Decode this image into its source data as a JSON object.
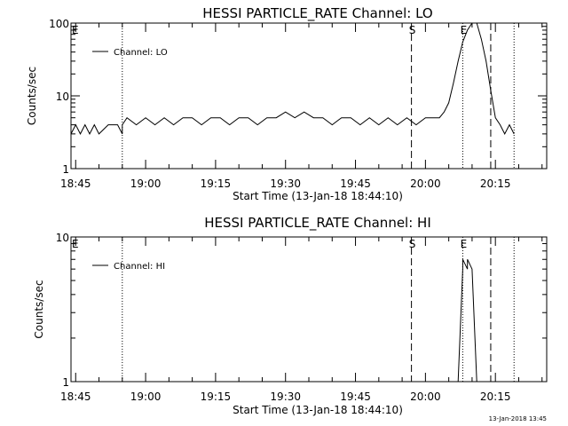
{
  "footer_date": "13-Jan-2018 13:45",
  "chart_data": [
    {
      "type": "line",
      "title": "HESSI PARTICLE_RATE Channel: LO",
      "xlabel": "Start Time (13-Jan-18 18:44:10)",
      "ylabel": "Counts/sec",
      "yscale": "log",
      "ylim": [
        1,
        100
      ],
      "yticks": [
        1,
        10,
        100
      ],
      "ytick_labels": [
        "1",
        "10",
        "100"
      ],
      "xlim": [
        "18:44",
        "20:26"
      ],
      "xticks": [
        "18:45",
        "19:00",
        "19:15",
        "19:30",
        "19:45",
        "20:00",
        "20:15"
      ],
      "legend": "Channel: LO",
      "legend_position": "top-left",
      "markers": [
        {
          "time": "18:44",
          "label": "E",
          "style": "none"
        },
        {
          "time": "18:55",
          "label": "",
          "style": "dotted"
        },
        {
          "time": "19:57",
          "label": "S",
          "style": "dashed"
        },
        {
          "time": "20:08",
          "label": "E",
          "style": "dotted"
        },
        {
          "time": "20:14",
          "label": "",
          "style": "dashed"
        },
        {
          "time": "20:19",
          "label": "",
          "style": "dotted"
        }
      ],
      "series": [
        {
          "x": [
            "18:44",
            "18:45",
            "18:46",
            "18:47",
            "18:48",
            "18:49",
            "18:50",
            "18:52",
            "18:53",
            "18:54",
            "18:55",
            "18:55",
            "18:56",
            "18:58",
            "19:00",
            "19:02",
            "19:04",
            "19:06",
            "19:08",
            "19:10",
            "19:12",
            "19:14",
            "19:16",
            "19:18",
            "19:20",
            "19:22",
            "19:24",
            "19:26",
            "19:28",
            "19:30",
            "19:32",
            "19:34",
            "19:36",
            "19:38",
            "19:40",
            "19:42",
            "19:44",
            "19:46",
            "19:48",
            "19:50",
            "19:52",
            "19:54",
            "19:56",
            "19:58",
            "20:00",
            "20:02",
            "20:03",
            "20:04",
            "20:05",
            "20:06",
            "20:07",
            "20:08",
            "20:09",
            "20:10",
            "20:11",
            "20:12",
            "20:13",
            "20:14",
            "20:15",
            "20:16",
            "20:17",
            "20:18",
            "20:19"
          ],
          "values": [
            3,
            4,
            3,
            4,
            3,
            4,
            3,
            4,
            4,
            4,
            3,
            4,
            5,
            4,
            5,
            4,
            5,
            4,
            5,
            5,
            4,
            5,
            5,
            4,
            5,
            5,
            4,
            5,
            5,
            6,
            5,
            6,
            5,
            5,
            4,
            5,
            5,
            4,
            5,
            4,
            5,
            4,
            5,
            4,
            5,
            5,
            5,
            6,
            8,
            15,
            30,
            55,
            80,
            100,
            100,
            60,
            30,
            12,
            5,
            4,
            3,
            4,
            3
          ]
        }
      ]
    },
    {
      "type": "line",
      "title": "HESSI PARTICLE_RATE Channel: HI",
      "xlabel": "Start Time (13-Jan-18 18:44:10)",
      "ylabel": "Counts/sec",
      "yscale": "log",
      "ylim": [
        1,
        10
      ],
      "yticks": [
        1,
        10
      ],
      "ytick_labels": [
        "1",
        "10"
      ],
      "xlim": [
        "18:44",
        "20:26"
      ],
      "xticks": [
        "18:45",
        "19:00",
        "19:15",
        "19:30",
        "19:45",
        "20:00",
        "20:15"
      ],
      "legend": "Channel: HI",
      "legend_position": "top-left",
      "markers": [
        {
          "time": "18:44",
          "label": "E",
          "style": "none"
        },
        {
          "time": "18:55",
          "label": "",
          "style": "dotted"
        },
        {
          "time": "19:57",
          "label": "S",
          "style": "dashed"
        },
        {
          "time": "20:08",
          "label": "E",
          "style": "dotted"
        },
        {
          "time": "20:14",
          "label": "",
          "style": "dashed"
        },
        {
          "time": "20:19",
          "label": "",
          "style": "dotted"
        }
      ],
      "series": [
        {
          "x": [
            "20:07",
            "20:08",
            "20:08",
            "20:09",
            "20:09",
            "20:10",
            "20:11"
          ],
          "values": [
            1,
            6,
            7,
            6,
            7,
            6,
            1
          ]
        }
      ]
    }
  ]
}
